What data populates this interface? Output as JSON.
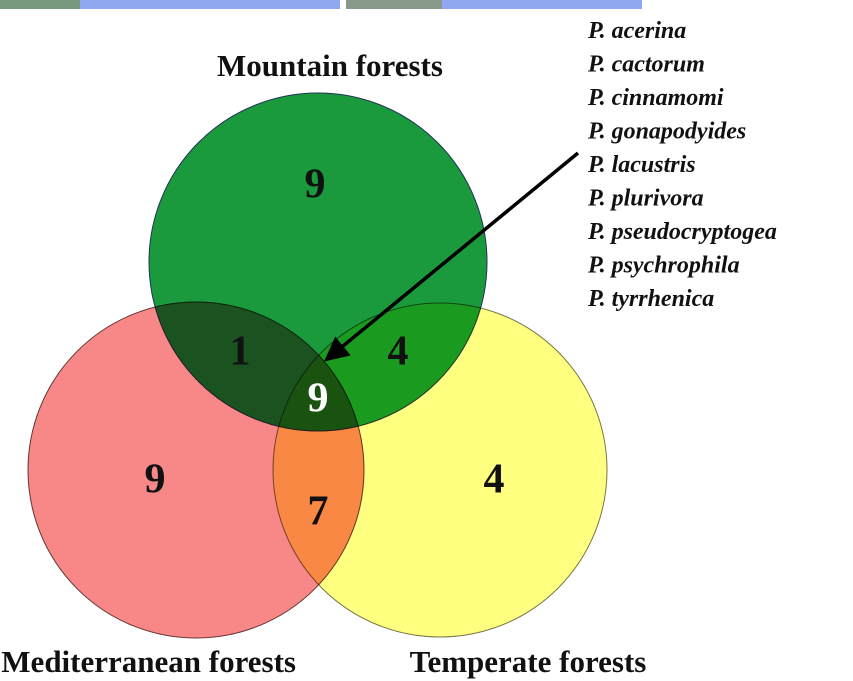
{
  "sets": [
    {
      "label": "Mountain forests"
    },
    {
      "label": "Mediterranean forests"
    },
    {
      "label": "Temperate forests"
    }
  ],
  "regions": [
    {
      "count": 9
    },
    {
      "count": 1
    },
    {
      "count": 4
    },
    {
      "count": 9
    },
    {
      "count": 9
    },
    {
      "count": 7
    },
    {
      "count": 4
    }
  ],
  "species": [
    "P. acerina",
    "P. cactorum",
    "P. cinnamomi",
    "P. gonapodyides",
    "P. lacustris",
    "P. plurivora",
    "P. pseudocryptogea",
    "P. psychrophila",
    "P. tyrrhenica"
  ]
}
